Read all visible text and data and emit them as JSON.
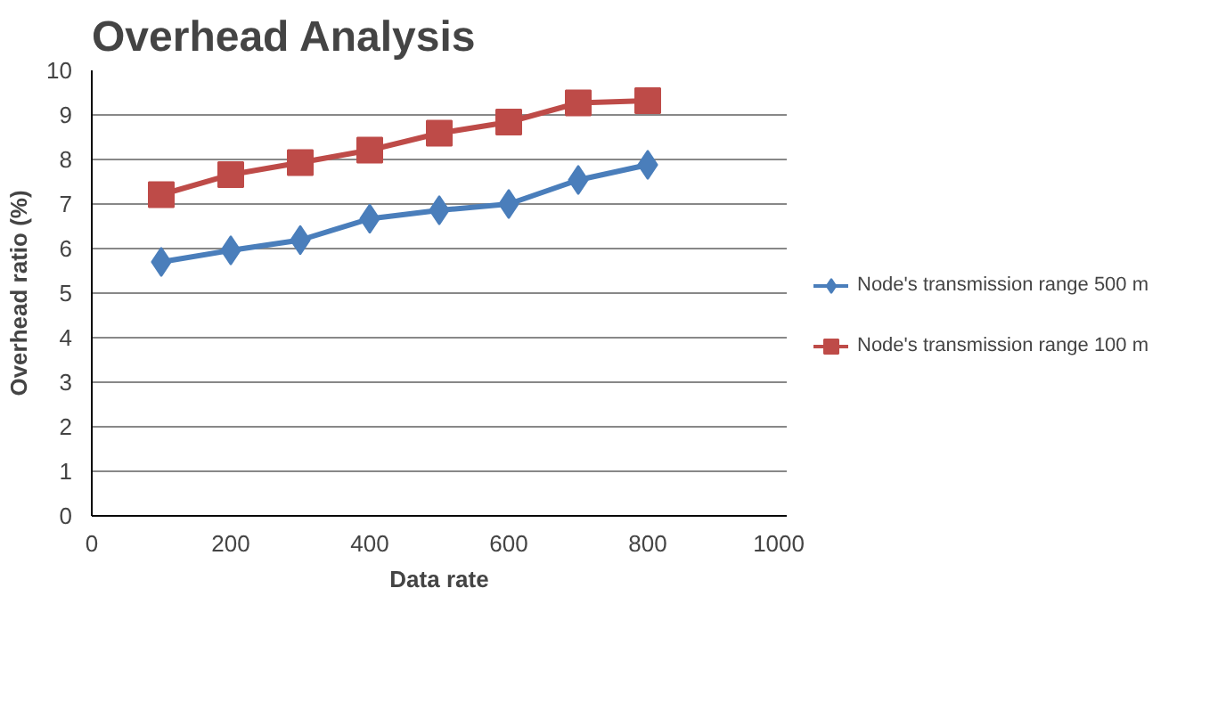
{
  "chart_data": {
    "type": "line",
    "title": "Overhead Analysis",
    "xlabel": "Data rate",
    "ylabel": "Overhead ratio (%)",
    "x": [
      100,
      200,
      300,
      400,
      500,
      600,
      700,
      800
    ],
    "series": [
      {
        "name": "Node's transmission range 500 m",
        "color": "#4a7ebb",
        "marker": "diamond",
        "values": [
          5.7,
          5.96,
          6.19,
          6.67,
          6.86,
          7.0,
          7.54,
          7.88
        ]
      },
      {
        "name": "Node's transmission range 100 m",
        "color": "#be4b48",
        "marker": "square",
        "values": [
          7.21,
          7.66,
          7.93,
          8.21,
          8.59,
          8.84,
          9.27,
          9.32
        ]
      }
    ],
    "xlim": [
      0,
      1000
    ],
    "xticks": [
      0,
      200,
      400,
      600,
      800,
      1000
    ],
    "ylim": [
      0,
      10
    ],
    "yticks": [
      0,
      1,
      2,
      3,
      4,
      5,
      6,
      7,
      8,
      9,
      10
    ],
    "grid": "y",
    "legend": "right"
  }
}
